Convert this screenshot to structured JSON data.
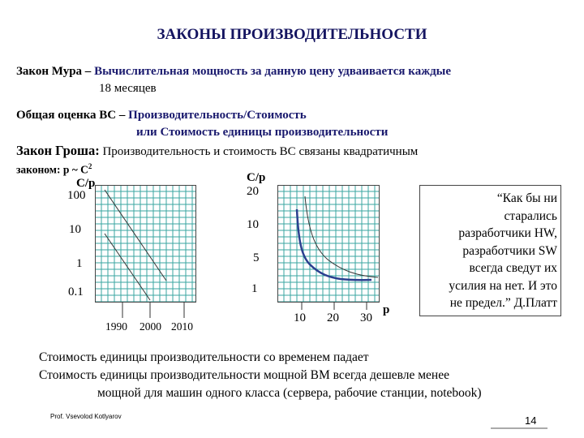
{
  "title": "ЗАКОНЫ ПРОИЗВОДИТЕЛЬНОСТИ",
  "moore": {
    "lead": "Закон Мура – ",
    "text": "Вычислительная мощность за данную цену удваивается каждые",
    "cont": "18 месяцев"
  },
  "assessment": {
    "lead": "Общая оценка ВС – ",
    "line1": "Производительность/Стоимость",
    "line2": "или Стоимость единицы производительности"
  },
  "grosch": {
    "lead": "Закон Гроша:",
    "text": " Производительность и стоимость ВС связаны квадратичным",
    "formula_prefix": "законом: p ~ C",
    "formula_exp": "2"
  },
  "chart_data": [
    {
      "type": "line",
      "ylabel": "C/p",
      "y_tick_labels": [
        "100",
        "10",
        "1",
        "0.1"
      ],
      "x_tick_labels": [
        "1990",
        "2000",
        "2010"
      ],
      "series": [
        {
          "x": [
            1985,
            1999.5
          ],
          "y": [
            100,
            2.5
          ]
        },
        {
          "x": [
            1985,
            1995
          ],
          "y": [
            7,
            0.1
          ]
        }
      ]
    },
    {
      "type": "line",
      "ylabel": "C/p",
      "xlabel": "p",
      "y_tick_labels": [
        "20",
        "10",
        "5",
        "1"
      ],
      "x_tick_labels": [
        "10",
        "20",
        "30"
      ],
      "series": [
        {
          "x": [
            3,
            4,
            5,
            8,
            12,
            18,
            25,
            30
          ],
          "y": [
            14,
            8.5,
            6,
            4,
            3.3,
            3,
            2.8,
            2.7
          ]
        },
        {
          "x": [
            4,
            6,
            10,
            15,
            20,
            25,
            30
          ],
          "y": [
            15,
            9,
            6,
            4.2,
            3.6,
            3.2,
            3
          ]
        }
      ]
    }
  ],
  "quote": [
    "“Как бы ни",
    "старались",
    "разработчики HW,",
    "разработчики SW",
    "всегда сведут их",
    "усилия на нет. И это",
    "не предел.” Д.Платт"
  ],
  "conclusions": {
    "line1": "Стоимость единицы производительности со временем падает",
    "line2": "Стоимость единицы производительности мощной ВМ всегда дешевле менее",
    "line3": "мощной для машин одного класса (сервера, рабочие станции, notebook)"
  },
  "footer": {
    "author": "Prof. Vsevolod Kotlyarov",
    "page": "14"
  }
}
